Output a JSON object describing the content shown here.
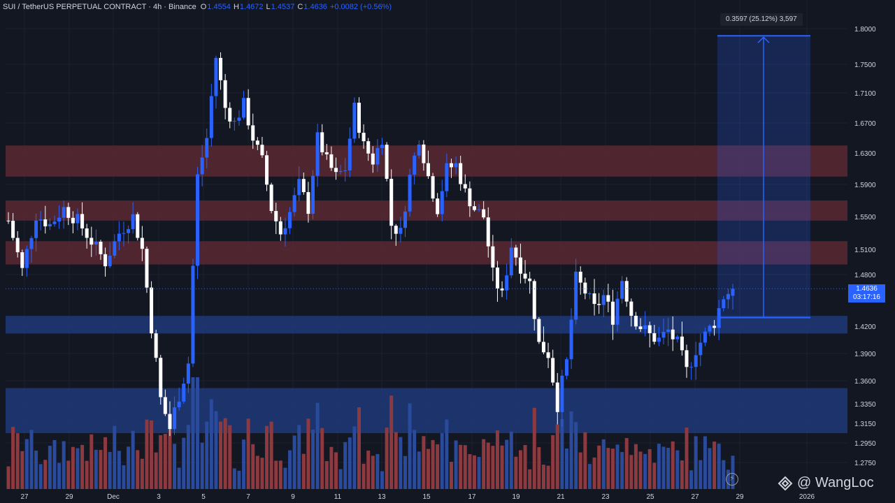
{
  "header": {
    "symbol": "SUI / TetherUS PERPETUAL CONTRACT · 4h · Binance",
    "o_label": "O",
    "o_value": "1.4554",
    "h_label": "H",
    "h_value": "1.4672",
    "l_label": "L",
    "l_value": "1.4537",
    "c_label": "C",
    "c_value": "1.4636",
    "change": "+0.0082 (+0.56%)"
  },
  "price_tag": {
    "price": "1.4636",
    "countdown": "03:17:16"
  },
  "measure": {
    "label": "0.3597 (25.12%) 3,597"
  },
  "watermark": {
    "text": "@ WangLoc"
  },
  "colors": {
    "background": "#131722",
    "bull": "#2962ff",
    "bear": "#ffffff",
    "vol_bull": "#2a4a9c",
    "vol_bear": "#8c3a3f",
    "resistance_zone": "#5a2833",
    "support_zone": "#1f3a78",
    "axis_text": "#d1d4dc"
  },
  "chart_data": {
    "type": "candlestick",
    "y_ticks": [
      "1.8000",
      "1.7500",
      "1.7100",
      "1.6700",
      "1.6300",
      "1.5900",
      "1.5500",
      "1.5100",
      "1.4800",
      "1.4200",
      "1.3900",
      "1.3600",
      "1.3350",
      "1.3150",
      "1.2950",
      "1.2750"
    ],
    "x_ticks": [
      "27",
      "29",
      "Dec",
      "3",
      "5",
      "7",
      "9",
      "11",
      "13",
      "15",
      "17",
      "19",
      "21",
      "23",
      "25",
      "27",
      "29",
      "2026"
    ],
    "resistance_zones": [
      [
        1.6,
        1.64
      ],
      [
        1.545,
        1.57
      ],
      [
        1.492,
        1.52
      ]
    ],
    "support_zones": [
      [
        1.412,
        1.432
      ],
      [
        1.305,
        1.352
      ]
    ],
    "measure_range": {
      "from": 1.43,
      "to": 1.79
    },
    "last_price": 1.4636,
    "close_path": [
      [
        0,
        1.545
      ],
      [
        3,
        1.485
      ],
      [
        6,
        1.552
      ],
      [
        9,
        1.54
      ],
      [
        12,
        1.56
      ],
      [
        15,
        1.545
      ],
      [
        18,
        1.52
      ],
      [
        21,
        1.495
      ],
      [
        24,
        1.53
      ],
      [
        27,
        1.55
      ],
      [
        29,
        1.51
      ],
      [
        31,
        1.42
      ],
      [
        33,
        1.34
      ],
      [
        35,
        1.31
      ],
      [
        37,
        1.345
      ],
      [
        39,
        1.38
      ],
      [
        41,
        1.6
      ],
      [
        43,
        1.65
      ],
      [
        45,
        1.76
      ],
      [
        47,
        1.69
      ],
      [
        49,
        1.67
      ],
      [
        51,
        1.695
      ],
      [
        53,
        1.65
      ],
      [
        55,
        1.62
      ],
      [
        57,
        1.56
      ],
      [
        59,
        1.53
      ],
      [
        61,
        1.555
      ],
      [
        63,
        1.59
      ],
      [
        65,
        1.56
      ],
      [
        67,
        1.65
      ],
      [
        69,
        1.62
      ],
      [
        71,
        1.6
      ],
      [
        73,
        1.61
      ],
      [
        75,
        1.69
      ],
      [
        77,
        1.64
      ],
      [
        79,
        1.62
      ],
      [
        81,
        1.65
      ],
      [
        83,
        1.54
      ],
      [
        85,
        1.53
      ],
      [
        87,
        1.6
      ],
      [
        89,
        1.65
      ],
      [
        91,
        1.6
      ],
      [
        93,
        1.56
      ],
      [
        95,
        1.61
      ],
      [
        97,
        1.615
      ],
      [
        99,
        1.58
      ],
      [
        101,
        1.56
      ],
      [
        103,
        1.55
      ],
      [
        105,
        1.48
      ],
      [
        107,
        1.455
      ],
      [
        109,
        1.515
      ],
      [
        111,
        1.49
      ],
      [
        113,
        1.47
      ],
      [
        115,
        1.4
      ],
      [
        117,
        1.39
      ],
      [
        119,
        1.335
      ],
      [
        121,
        1.38
      ],
      [
        123,
        1.475
      ],
      [
        125,
        1.46
      ],
      [
        127,
        1.44
      ],
      [
        129,
        1.455
      ],
      [
        131,
        1.43
      ],
      [
        133,
        1.475
      ],
      [
        135,
        1.435
      ],
      [
        137,
        1.42
      ],
      [
        139,
        1.41
      ],
      [
        141,
        1.405
      ],
      [
        143,
        1.415
      ],
      [
        145,
        1.4
      ],
      [
        147,
        1.37
      ],
      [
        149,
        1.395
      ],
      [
        151,
        1.41
      ],
      [
        153,
        1.425
      ],
      [
        155,
        1.455
      ],
      [
        157,
        1.4636
      ]
    ]
  }
}
